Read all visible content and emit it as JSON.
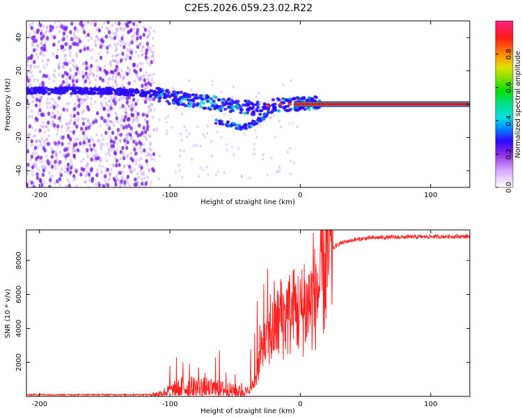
{
  "title": "C2E5.2026.059.23.02.R22",
  "colors": {
    "axes": "#000000",
    "snr_line": "#ff2020",
    "scatter": "#9a55ff",
    "band": "#1a10ff",
    "carrier_core": "#e8103a",
    "carrier_edge": "#20d040"
  },
  "chart_data": [
    {
      "id": "spectrogram",
      "type": "heatmap",
      "xlabel": "Height of straight line (km)",
      "ylabel": "Frequency (Hz)",
      "xlim": [
        -210,
        130
      ],
      "ylim": [
        -50,
        50
      ],
      "xticks": [
        -200,
        -100,
        0,
        100
      ],
      "yticks": [
        -40,
        -20,
        0,
        20,
        40
      ],
      "colorbar": {
        "label": "Normalized spectral amplitude",
        "range": [
          0,
          1
        ],
        "ticks": [
          "0.0",
          "0.2",
          "0.4",
          "0.6",
          "0.8"
        ],
        "tick_values": [
          0.0,
          0.2,
          0.4,
          0.6,
          0.8
        ],
        "stops": [
          [
            0.0,
            "#ffffff"
          ],
          [
            0.1,
            "#d9a8ff"
          ],
          [
            0.2,
            "#8a2be2"
          ],
          [
            0.28,
            "#2b0bff"
          ],
          [
            0.36,
            "#0090ff"
          ],
          [
            0.42,
            "#00e0e0"
          ],
          [
            0.5,
            "#00e08a"
          ],
          [
            0.58,
            "#00e000"
          ],
          [
            0.66,
            "#8ae000"
          ],
          [
            0.72,
            "#e0e000"
          ],
          [
            0.8,
            "#ff8a00"
          ],
          [
            0.9,
            "#ff1a1a"
          ],
          [
            1.0,
            "#ff2080"
          ]
        ]
      },
      "noise_region": {
        "x_range": [
          -210,
          -112
        ],
        "y_range": [
          -50,
          50
        ]
      },
      "signal_trace": {
        "x": [
          -210,
          -180,
          -150,
          -125,
          -110,
          -100,
          -90,
          -80,
          -70,
          -60,
          -50,
          -40,
          -30,
          -20,
          -10,
          0,
          10,
          15
        ],
        "freq": [
          8,
          8,
          8,
          7,
          6,
          4,
          3,
          2,
          1,
          0,
          -1,
          -2,
          -3,
          -1,
          0,
          0,
          1,
          1
        ]
      },
      "branch": {
        "x": [
          -65,
          -55,
          -48,
          -40,
          -30,
          -25
        ],
        "freq": [
          -10,
          -12,
          -14,
          -13,
          -9,
          -7
        ]
      },
      "carrier": {
        "x_range": [
          -5,
          130
        ],
        "freq": 0
      }
    },
    {
      "id": "snr",
      "type": "line",
      "xlabel": "Height of straight line (km)",
      "ylabel": "SNR (10 * v/v)",
      "xlim": [
        -210,
        130
      ],
      "ylim": [
        0,
        9800
      ],
      "xticks": [
        -200,
        -100,
        0,
        100
      ],
      "yticks": [
        2000,
        4000,
        6000,
        8000
      ],
      "series": [
        {
          "name": "SNR",
          "baseline": {
            "x": [
              -210,
              -120,
              -110,
              -100,
              -90,
              -80,
              -70,
              -60,
              -50,
              -40,
              -35,
              -30,
              -25,
              -20,
              -15,
              -10,
              -5,
              0,
              5,
              10,
              15,
              20,
              25,
              30,
              40,
              50,
              60,
              80,
              100,
              130
            ],
            "y": [
              100,
              100,
              120,
              300,
              500,
              500,
              450,
              400,
              300,
              250,
              800,
              2500,
              3200,
              4000,
              4500,
              4800,
              5000,
              5000,
              5200,
              5600,
              6500,
              8000,
              8700,
              9000,
              9200,
              9300,
              9350,
              9380,
              9400,
              9420
            ]
          },
          "spikes": [
            {
              "x": -100,
              "y": 1800
            },
            {
              "x": -95,
              "y": 2300
            },
            {
              "x": -90,
              "y": 2000
            },
            {
              "x": -85,
              "y": 1900
            },
            {
              "x": -78,
              "y": 1700
            },
            {
              "x": -73,
              "y": 1400
            },
            {
              "x": -65,
              "y": 2300
            },
            {
              "x": -62,
              "y": 2700
            },
            {
              "x": -57,
              "y": 1400
            },
            {
              "x": -50,
              "y": 1300
            },
            {
              "x": -45,
              "y": 800
            },
            {
              "x": -38,
              "y": 2800
            },
            {
              "x": -35,
              "y": 3700
            },
            {
              "x": -33,
              "y": 5600
            },
            {
              "x": -31,
              "y": 4200
            },
            {
              "x": -28,
              "y": 6600
            },
            {
              "x": -25,
              "y": 7500
            },
            {
              "x": -23,
              "y": 6000
            },
            {
              "x": -20,
              "y": 6800
            },
            {
              "x": -18,
              "y": 5300
            },
            {
              "x": -15,
              "y": 6900
            },
            {
              "x": -10,
              "y": 6000
            },
            {
              "x": -5,
              "y": 7200
            },
            {
              "x": 0,
              "y": 6900
            },
            {
              "x": 3,
              "y": 7800
            },
            {
              "x": 7,
              "y": 7200
            },
            {
              "x": 10,
              "y": 9600
            },
            {
              "x": 12,
              "y": 7800
            },
            {
              "x": 16,
              "y": 8500
            }
          ]
        }
      ]
    }
  ]
}
